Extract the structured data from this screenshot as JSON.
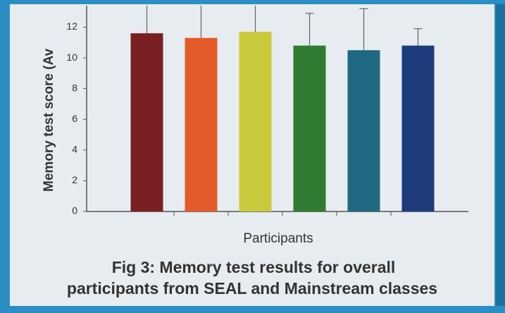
{
  "chart_data": {
    "type": "bar",
    "y_label": "Memory test score (Av",
    "x_label": "Participants",
    "caption_lines": [
      "Fig 3: Memory test results for overall",
      "participants from SEAL and Mainstream classes"
    ],
    "categories": [
      null,
      null,
      null,
      null,
      null,
      null
    ],
    "values": [
      11.6,
      11.3,
      11.7,
      10.8,
      10.5,
      10.8
    ],
    "errors": [
      2.0,
      2.2,
      2.0,
      2.1,
      2.7,
      1.1
    ],
    "colors": [
      "#7a1f24",
      "#e55a2b",
      "#c9c93c",
      "#2f7b30",
      "#1f6a82",
      "#1e3b7b"
    ],
    "ylim": [
      0,
      13.4
    ],
    "yticks": [
      0,
      2,
      4,
      6,
      8,
      10,
      12
    ]
  }
}
